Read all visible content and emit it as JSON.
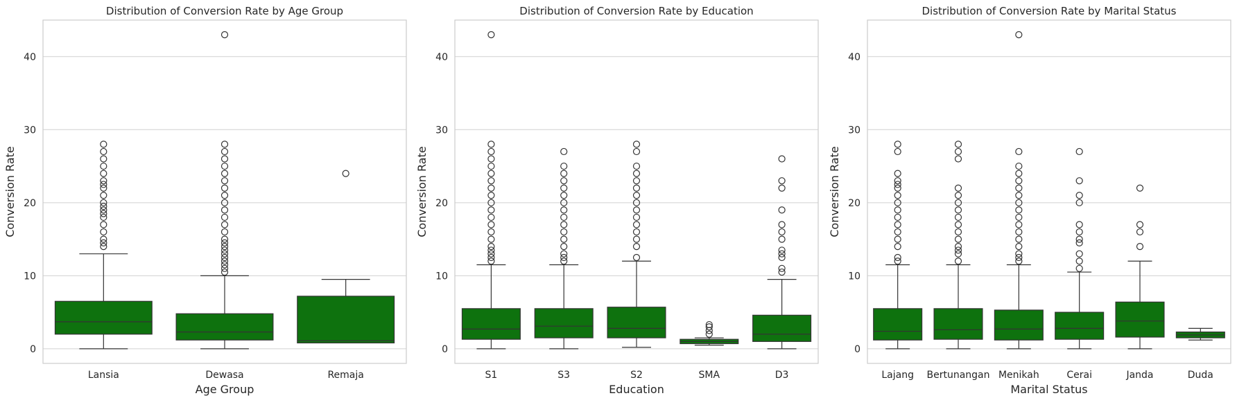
{
  "chart_data": [
    {
      "type": "box",
      "title": "Distribution of Conversion Rate by Age Group",
      "xlabel": "Age Group",
      "ylabel": "Conversion Rate",
      "ylim": [
        -2,
        45
      ],
      "yticks": [
        0,
        10,
        20,
        30,
        40
      ],
      "grid": "horizontal",
      "box_color": "#0e720e",
      "categories": [
        "Lansia",
        "Dewasa",
        "Remaja"
      ],
      "boxes": [
        {
          "category": "Lansia",
          "whisker_low": 0,
          "q1": 2,
          "median": 3.7,
          "q3": 6.5,
          "whisker_high": 13,
          "outliers": [
            14,
            14.5,
            15,
            16,
            17,
            18,
            18.5,
            19,
            19.5,
            20,
            21,
            22,
            22.5,
            23,
            24,
            25,
            26,
            27,
            28
          ]
        },
        {
          "category": "Dewasa",
          "whisker_low": 0,
          "q1": 1.2,
          "median": 2.3,
          "q3": 4.8,
          "whisker_high": 10,
          "outliers": [
            10.5,
            11,
            11.5,
            12,
            12.5,
            13,
            13.5,
            14,
            14.5,
            15,
            16,
            17,
            18,
            19,
            20,
            21,
            22,
            23,
            24,
            25,
            26,
            27,
            28,
            43
          ]
        },
        {
          "category": "Remaja",
          "whisker_low": 0.8,
          "q1": 0.8,
          "median": 1.1,
          "q3": 7.2,
          "whisker_high": 9.5,
          "outliers": [
            24
          ]
        }
      ]
    },
    {
      "type": "box",
      "title": "Distribution of Conversion Rate by Education",
      "xlabel": "Education",
      "ylabel": "Conversion Rate",
      "ylim": [
        -2,
        45
      ],
      "yticks": [
        0,
        10,
        20,
        30,
        40
      ],
      "grid": "horizontal",
      "box_color": "#0e720e",
      "categories": [
        "S1",
        "S3",
        "S2",
        "SMA",
        "D3"
      ],
      "boxes": [
        {
          "category": "S1",
          "whisker_low": 0,
          "q1": 1.3,
          "median": 2.7,
          "q3": 5.5,
          "whisker_high": 11.5,
          "outliers": [
            12,
            12.5,
            13,
            13.5,
            14,
            15,
            16,
            17,
            18,
            19,
            20,
            21,
            22,
            23,
            24,
            25,
            26,
            27,
            28,
            43
          ]
        },
        {
          "category": "S3",
          "whisker_low": 0,
          "q1": 1.5,
          "median": 3.1,
          "q3": 5.5,
          "whisker_high": 11.5,
          "outliers": [
            12,
            12.5,
            13,
            14,
            15,
            16,
            17,
            18,
            19,
            20,
            21,
            22,
            23,
            24,
            25,
            27
          ]
        },
        {
          "category": "S2",
          "whisker_low": 0.2,
          "q1": 1.5,
          "median": 2.8,
          "q3": 5.7,
          "whisker_high": 12,
          "outliers": [
            12.5,
            14,
            15,
            16,
            17,
            18,
            19,
            20,
            21,
            22,
            23,
            24,
            25,
            27,
            28
          ]
        },
        {
          "category": "SMA",
          "whisker_low": 0.5,
          "q1": 0.7,
          "median": 1.0,
          "q3": 1.3,
          "whisker_high": 1.5,
          "outliers": [
            2,
            2.5,
            3,
            3.3
          ]
        },
        {
          "category": "D3",
          "whisker_low": 0,
          "q1": 1.0,
          "median": 2.0,
          "q3": 4.6,
          "whisker_high": 9.5,
          "outliers": [
            10.5,
            11,
            12.5,
            13,
            13.5,
            15,
            16,
            17,
            19,
            22,
            23,
            26
          ]
        }
      ]
    },
    {
      "type": "box",
      "title": "Distribution of Conversion Rate by Marital Status",
      "xlabel": "Marital Status",
      "ylabel": "Conversion Rate",
      "ylim": [
        -2,
        45
      ],
      "yticks": [
        0,
        10,
        20,
        30,
        40
      ],
      "grid": "horizontal",
      "box_color": "#0e720e",
      "categories": [
        "Lajang",
        "Bertunangan",
        "Menikah",
        "Cerai",
        "Janda",
        "Duda"
      ],
      "boxes": [
        {
          "category": "Lajang",
          "whisker_low": 0,
          "q1": 1.2,
          "median": 2.4,
          "q3": 5.5,
          "whisker_high": 11.5,
          "outliers": [
            12,
            12.5,
            14,
            15,
            16,
            17,
            18,
            19,
            20,
            21,
            22,
            22.5,
            23,
            24,
            27,
            28
          ]
        },
        {
          "category": "Bertunangan",
          "whisker_low": 0,
          "q1": 1.3,
          "median": 2.6,
          "q3": 5.5,
          "whisker_high": 11.5,
          "outliers": [
            12,
            13,
            13.5,
            14,
            15,
            16,
            17,
            18,
            19,
            20,
            21,
            22,
            26,
            27,
            28
          ]
        },
        {
          "category": "Menikah",
          "whisker_low": 0,
          "q1": 1.2,
          "median": 2.7,
          "q3": 5.3,
          "whisker_high": 11.5,
          "outliers": [
            12,
            12.5,
            13,
            14,
            15,
            16,
            17,
            18,
            19,
            20,
            21,
            22,
            23,
            24,
            25,
            27,
            43
          ]
        },
        {
          "category": "Cerai",
          "whisker_low": 0,
          "q1": 1.3,
          "median": 2.8,
          "q3": 5.0,
          "whisker_high": 10.5,
          "outliers": [
            11,
            12,
            13,
            14.5,
            15,
            16,
            17,
            20,
            21,
            23,
            27
          ]
        },
        {
          "category": "Janda",
          "whisker_low": 0,
          "q1": 1.6,
          "median": 3.8,
          "q3": 6.4,
          "whisker_high": 12,
          "outliers": [
            14,
            16,
            17,
            22
          ]
        },
        {
          "category": "Duda",
          "whisker_low": 1.2,
          "q1": 1.5,
          "median": 1.9,
          "q3": 2.3,
          "whisker_high": 2.8,
          "outliers": []
        }
      ]
    }
  ]
}
